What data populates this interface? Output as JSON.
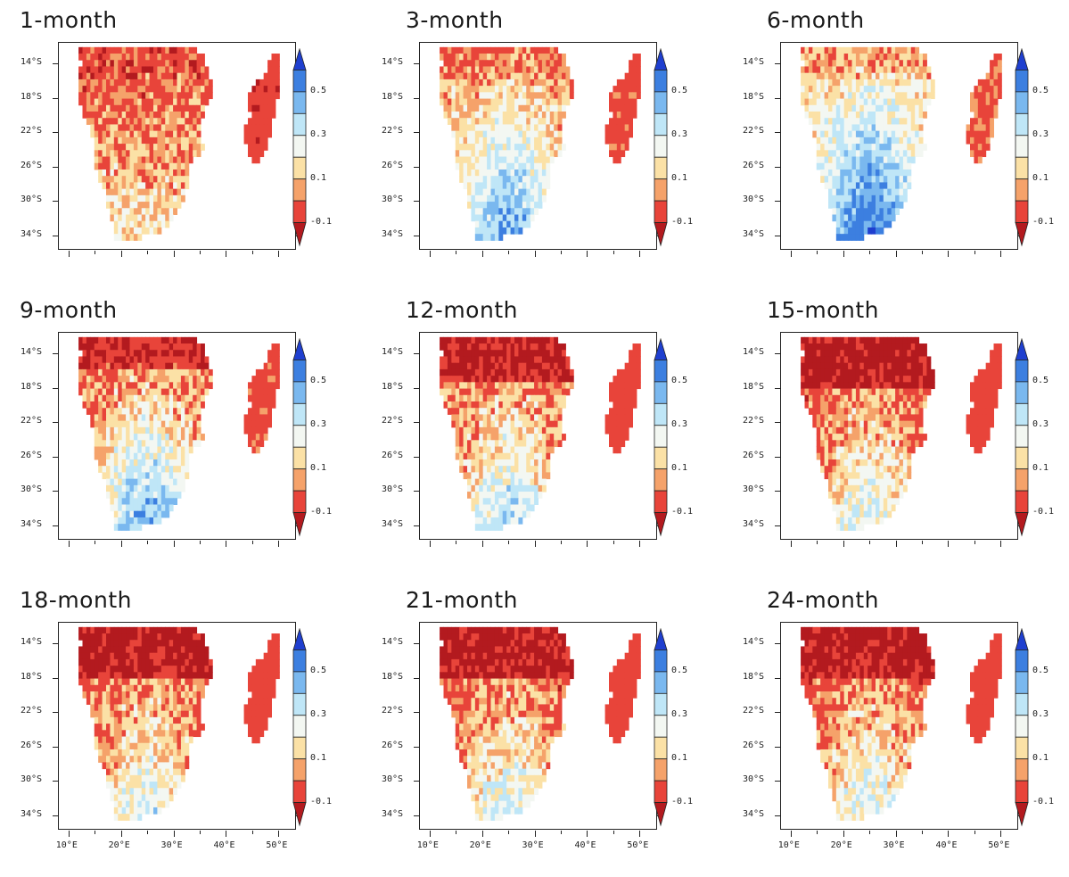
{
  "figure": {
    "panels": [
      {
        "title": "1-month",
        "pattern": "red-dominant"
      },
      {
        "title": "3-month",
        "pattern": "blue-south"
      },
      {
        "title": "6-month",
        "pattern": "blue-south-strong"
      },
      {
        "title": "9-month",
        "pattern": "mixed-blue"
      },
      {
        "title": "12-month",
        "pattern": "mixed"
      },
      {
        "title": "15-month",
        "pattern": "mixed-red"
      },
      {
        "title": "18-month",
        "pattern": "mixed-red"
      },
      {
        "title": "21-month",
        "pattern": "mixed-red"
      },
      {
        "title": "24-month",
        "pattern": "mixed-red"
      }
    ],
    "lat_labels": [
      "14°S",
      "18°S",
      "22°S",
      "26°S",
      "30°S",
      "34°S"
    ],
    "lon_labels": [
      "10°E",
      "20°E",
      "30°E",
      "40°E",
      "50°E"
    ],
    "colorbar": {
      "labels": [
        "0.5",
        "0.3",
        "0.1",
        "-0.1"
      ],
      "colors": [
        "#1f3fcf",
        "#3c7fe0",
        "#7ab8ef",
        "#bfe6f7",
        "#f3f7f2",
        "#fbe1a6",
        "#f5a26a",
        "#e8443a",
        "#b31a1f"
      ]
    }
  }
}
